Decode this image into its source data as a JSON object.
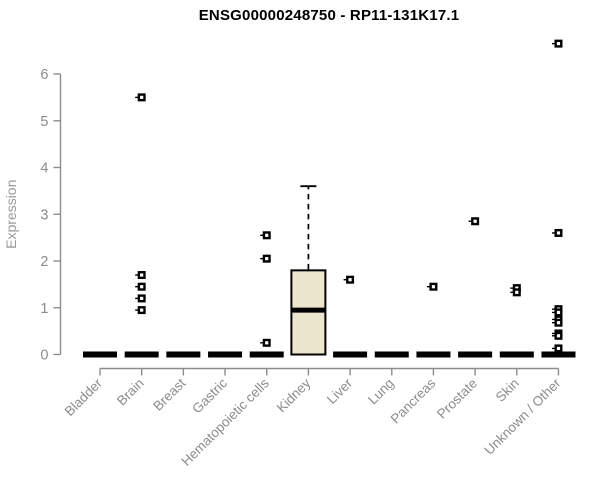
{
  "chart_data": {
    "type": "boxplot",
    "title": "ENSG00000248750 - RP11-131K17.1",
    "ylabel": "Expression",
    "xlabel": "",
    "ylim": [
      0,
      6.9
    ],
    "yticks": [
      0,
      1,
      2,
      3,
      4,
      5,
      6
    ],
    "grid": false,
    "legend": false,
    "categories": [
      "Bladder",
      "Brain",
      "Breast",
      "Gastric",
      "Hematopoietic cells",
      "Kidney",
      "Liver",
      "Lung",
      "Pancreas",
      "Prostate",
      "Skin",
      "Unknown / Other"
    ],
    "boxes": [
      {
        "category": "Bladder",
        "q1": 0,
        "median": 0,
        "q3": 0,
        "whisker_low": 0,
        "whisker_high": 0,
        "outliers": []
      },
      {
        "category": "Brain",
        "q1": 0,
        "median": 0,
        "q3": 0,
        "whisker_low": 0,
        "whisker_high": 0,
        "outliers": [
          5.5,
          1.7,
          1.45,
          1.2,
          0.95
        ]
      },
      {
        "category": "Breast",
        "q1": 0,
        "median": 0,
        "q3": 0,
        "whisker_low": 0,
        "whisker_high": 0,
        "outliers": []
      },
      {
        "category": "Gastric",
        "q1": 0,
        "median": 0,
        "q3": 0,
        "whisker_low": 0,
        "whisker_high": 0,
        "outliers": []
      },
      {
        "category": "Hematopoietic cells",
        "q1": 0,
        "median": 0,
        "q3": 0,
        "whisker_low": 0,
        "whisker_high": 0,
        "outliers": [
          2.55,
          2.05,
          0.25
        ]
      },
      {
        "category": "Kidney",
        "q1": 0,
        "median": 0.95,
        "q3": 1.8,
        "whisker_low": 0,
        "whisker_high": 3.6,
        "outliers": []
      },
      {
        "category": "Liver",
        "q1": 0,
        "median": 0,
        "q3": 0,
        "whisker_low": 0,
        "whisker_high": 0,
        "outliers": [
          1.6
        ]
      },
      {
        "category": "Lung",
        "q1": 0,
        "median": 0,
        "q3": 0,
        "whisker_low": 0,
        "whisker_high": 0,
        "outliers": []
      },
      {
        "category": "Pancreas",
        "q1": 0,
        "median": 0,
        "q3": 0,
        "whisker_low": 0,
        "whisker_high": 0,
        "outliers": [
          1.45
        ]
      },
      {
        "category": "Prostate",
        "q1": 0,
        "median": 0,
        "q3": 0,
        "whisker_low": 0,
        "whisker_high": 0,
        "outliers": [
          2.85
        ]
      },
      {
        "category": "Skin",
        "q1": 0,
        "median": 0,
        "q3": 0,
        "whisker_low": 0,
        "whisker_high": 0,
        "outliers": [
          1.42,
          1.33
        ]
      },
      {
        "category": "Unknown / Other",
        "q1": 0,
        "median": 0,
        "q3": 0,
        "whisker_low": 0,
        "whisker_high": 0,
        "outliers": [
          6.65,
          2.6,
          0.97,
          0.9,
          0.75,
          0.68,
          0.45,
          0.4,
          0.13
        ]
      }
    ],
    "colors": {
      "box_fill": "#ece6cf",
      "box_border": "#000000",
      "median": "#000000",
      "whisker": "#000000",
      "outlier_stroke": "#000000",
      "outlier_fill": "#ffffff",
      "axis": "#8c8c8c",
      "tick_label": "#8c8c8c",
      "axis_label": "#9a9a9a",
      "title": "#000000",
      "background": "#ffffff"
    }
  }
}
